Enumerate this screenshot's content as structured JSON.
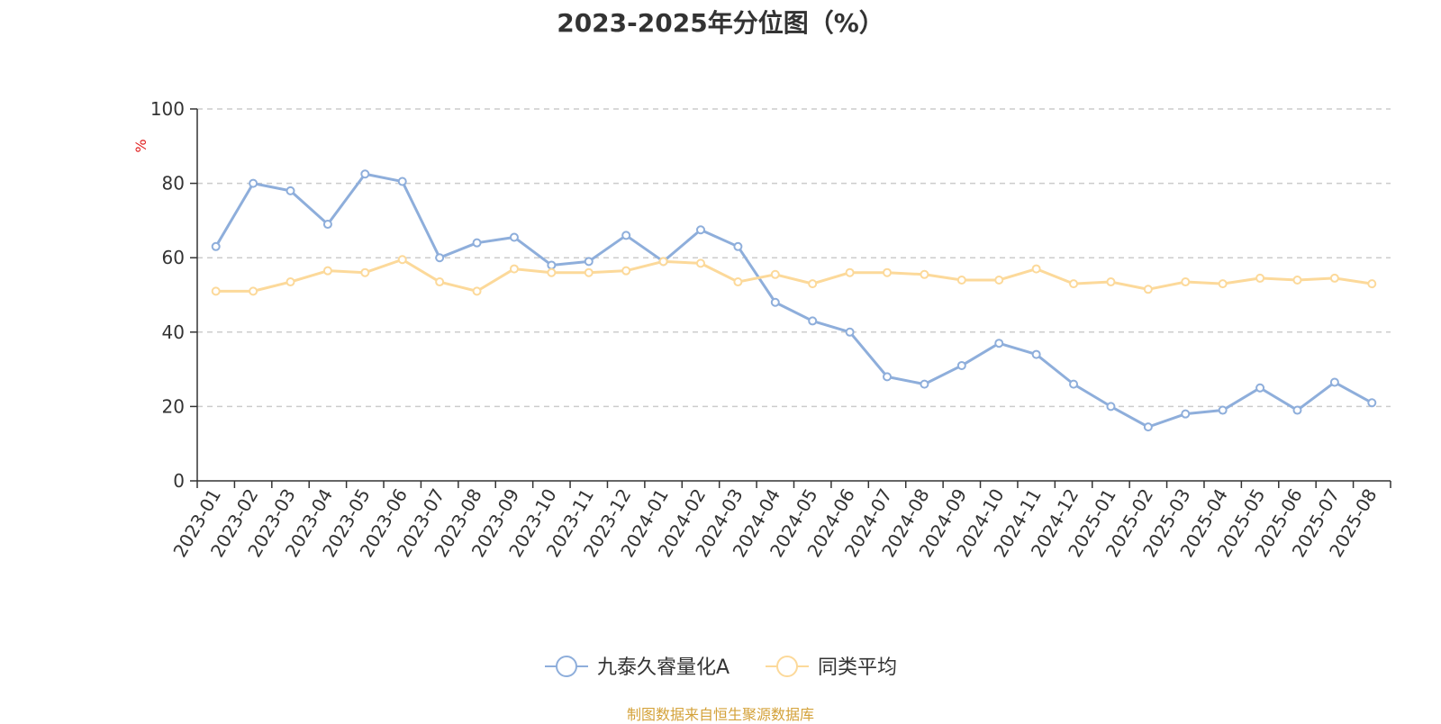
{
  "chart_data": {
    "type": "line",
    "title": "2023-2025年分位图（%）",
    "ylabel": "%",
    "xlabel": "",
    "ylim": [
      0,
      100
    ],
    "yticks": [
      0,
      20,
      40,
      60,
      80,
      100
    ],
    "grid": true,
    "legend_position": "bottom",
    "categories": [
      "2023-01",
      "2023-02",
      "2023-03",
      "2023-04",
      "2023-05",
      "2023-06",
      "2023-07",
      "2023-08",
      "2023-09",
      "2023-10",
      "2023-11",
      "2023-12",
      "2024-01",
      "2024-02",
      "2024-03",
      "2024-04",
      "2024-05",
      "2024-06",
      "2024-07",
      "2024-08",
      "2024-09",
      "2024-10",
      "2024-11",
      "2024-12",
      "2025-01",
      "2025-02",
      "2025-03",
      "2025-04",
      "2025-05",
      "2025-06",
      "2025-07",
      "2025-08"
    ],
    "series": [
      {
        "name": "九泰久睿量化A",
        "color": "#8eaedb",
        "values": [
          63,
          80,
          78,
          69,
          82.5,
          80.5,
          60,
          64,
          65.5,
          58,
          59,
          66,
          59,
          67.5,
          63,
          48,
          43,
          40,
          28,
          26,
          31,
          37,
          34,
          26,
          20,
          14.5,
          18,
          19,
          25,
          19,
          26.5,
          21
        ]
      },
      {
        "name": "同类平均",
        "color": "#fcd99a",
        "values": [
          51,
          51,
          53.5,
          56.5,
          56,
          59.5,
          53.5,
          51,
          57,
          56,
          56,
          56.5,
          59,
          58.5,
          53.5,
          55.5,
          53,
          56,
          56,
          55.5,
          54,
          54,
          57,
          53,
          53.5,
          51.5,
          53.5,
          53,
          54.5,
          54,
          54.5,
          53
        ]
      }
    ]
  },
  "footer": {
    "source": "制图数据来自恒生聚源数据库"
  }
}
